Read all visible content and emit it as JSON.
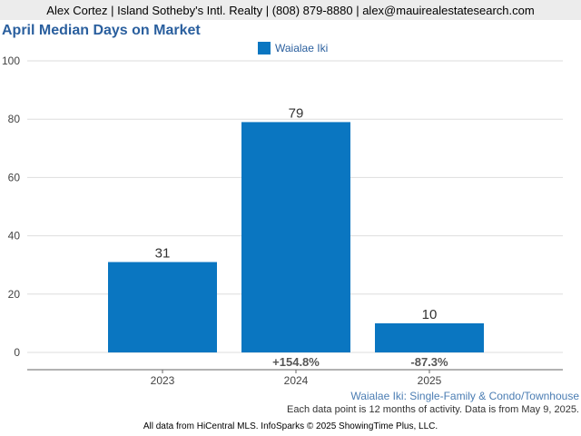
{
  "header": {
    "contact_line": "Alex Cortez | Island Sotheby's Intl. Realty | (808) 879-8880 | alex@mauirealestatesearch.com"
  },
  "colors": {
    "bar": "#0a76c1",
    "title": "#2a5f9e",
    "header_background": "#ececec"
  },
  "chart_data": {
    "type": "bar",
    "title": "April Median Days on Market",
    "xlabel": "",
    "ylabel": "",
    "categories": [
      "2023",
      "2024",
      "2025"
    ],
    "series": [
      {
        "name": "Waialae Iki",
        "values": [
          31,
          79,
          10
        ]
      }
    ],
    "percent_change_labels": [
      "",
      "+154.8%",
      "-87.3%"
    ],
    "ylim": [
      0,
      100
    ],
    "yticks": [
      0,
      20,
      40,
      60,
      80,
      100
    ],
    "grid": true,
    "legend_position": "top-center"
  },
  "footer": {
    "subject": "Waialae Iki: Single-Family & Condo/Townhouse",
    "note": "Each data point is 12 months of activity. Data is from May 9, 2025.",
    "copyright": "All data from HiCentral MLS. InfoSparks © 2025 ShowingTime Plus, LLC."
  }
}
